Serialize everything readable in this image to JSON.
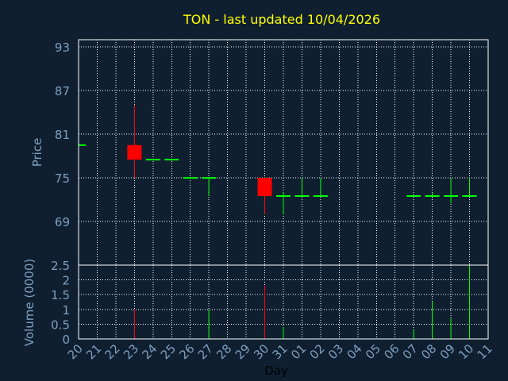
{
  "chart_data": {
    "type": "candlestick",
    "title": "TON - last updated 10/04/2026",
    "xlabel": "Day",
    "price_panel": {
      "ylabel": "Price",
      "yticks": [
        93,
        87,
        81,
        75,
        69
      ],
      "ylim": [
        63,
        94
      ]
    },
    "volume_panel": {
      "ylabel": "Volume (0000)",
      "yticks": [
        "2.5",
        "2",
        "1.5",
        "1",
        "0.5",
        "0"
      ],
      "ylim": [
        0,
        2.5
      ]
    },
    "x_ticks": [
      "20",
      "21",
      "22",
      "23",
      "24",
      "25",
      "26",
      "27",
      "28",
      "29",
      "30",
      "31",
      "01",
      "02",
      "03",
      "04",
      "05",
      "06",
      "07",
      "08",
      "09",
      "10",
      "11"
    ],
    "grid": true,
    "candles": [
      {
        "day": "20",
        "open": 79.5,
        "high": 79.5,
        "low": 79.5,
        "close": 79.5,
        "volume": 0
      },
      {
        "day": "23",
        "open": 79.5,
        "high": 85,
        "low": 75,
        "close": 77.5,
        "volume": 1.0
      },
      {
        "day": "24",
        "open": 77.5,
        "high": 77.5,
        "low": 77.5,
        "close": 77.5,
        "volume": 0
      },
      {
        "day": "25",
        "open": 77.5,
        "high": 77.5,
        "low": 77.5,
        "close": 77.5,
        "volume": 0
      },
      {
        "day": "26",
        "open": 75,
        "high": 75,
        "low": 75,
        "close": 75,
        "volume": 0
      },
      {
        "day": "27",
        "open": 75,
        "high": 75,
        "low": 72.5,
        "close": 75,
        "volume": 1.0
      },
      {
        "day": "30",
        "open": 75,
        "high": 75,
        "low": 70,
        "close": 72.5,
        "volume": 1.8
      },
      {
        "day": "31",
        "open": 72.5,
        "high": 73,
        "low": 70,
        "close": 72.5,
        "volume": 0.4
      },
      {
        "day": "01",
        "open": 72.5,
        "high": 75,
        "low": 72.5,
        "close": 72.5,
        "volume": 0
      },
      {
        "day": "02",
        "open": 72.5,
        "high": 75,
        "low": 72.5,
        "close": 72.5,
        "volume": 0
      },
      {
        "day": "07",
        "open": 72.5,
        "high": 72.5,
        "low": 72.5,
        "close": 72.5,
        "volume": 0.3
      },
      {
        "day": "08",
        "open": 72.5,
        "high": 73,
        "low": 72.5,
        "close": 72.5,
        "volume": 1.3
      },
      {
        "day": "09",
        "open": 72.5,
        "high": 75,
        "low": 71.5,
        "close": 72.5,
        "volume": 0.7
      },
      {
        "day": "10",
        "open": 72.5,
        "high": 75,
        "low": 72.5,
        "close": 72.5,
        "volume": 2.5
      }
    ],
    "colors": {
      "background": "#0f1f30",
      "grid": "#ffffff",
      "axis_text": "#7f9fbf",
      "title": "#ffff00",
      "up": "#00ff00",
      "down": "#ff0000"
    }
  }
}
